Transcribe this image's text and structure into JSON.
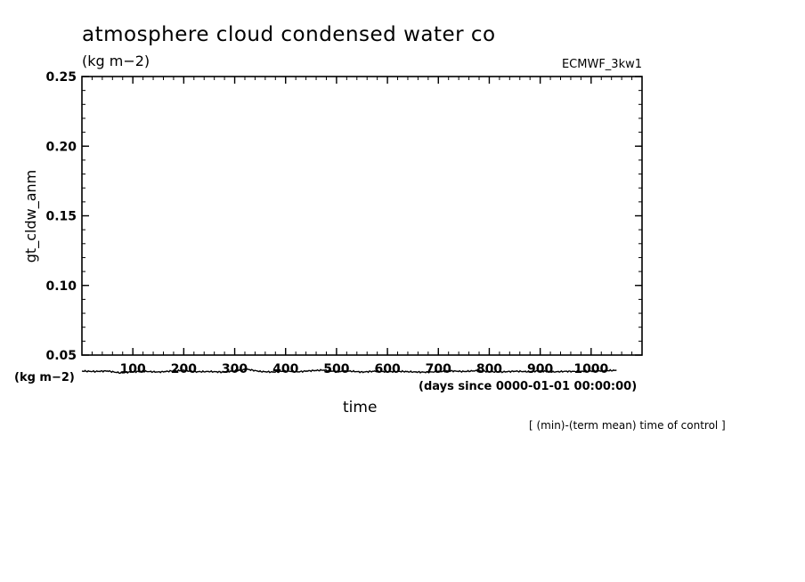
{
  "chart_data": {
    "type": "line",
    "title": "atmosphere cloud condensed water co",
    "subtitle": "(kg m−2)",
    "dataset": "ECMWF_3kw1",
    "ylabel": "gt_cldw_anm",
    "yunits": "(kg m−2)",
    "xlabel": "time",
    "xunits": "(days since 0000-01-01 00:00:00)",
    "note": "[ (min)-(term mean) time of control ]",
    "ylim": [
      0.05,
      0.25
    ],
    "xlim": [
      0,
      1100
    ],
    "yticks": [
      "0.05",
      "0.10",
      "0.15",
      "0.20",
      "0.25"
    ],
    "yticks_values": [
      0.05,
      0.1,
      0.15,
      0.2,
      0.25
    ],
    "xticks": [
      "100",
      "200",
      "300",
      "400",
      "500",
      "600",
      "700",
      "800",
      "900",
      "1000"
    ],
    "xticks_values": [
      100,
      200,
      300,
      400,
      500,
      600,
      700,
      800,
      900,
      1000
    ],
    "grid": false,
    "series": [
      {
        "color": "#000000",
        "x": [
          0,
          25,
          50,
          75,
          100,
          125,
          150,
          175,
          200,
          225,
          250,
          275,
          300,
          325,
          350,
          375,
          400,
          425,
          450,
          475,
          500,
          525,
          550,
          575,
          600,
          625,
          650,
          675,
          700,
          725,
          750,
          775,
          800,
          825,
          850,
          875,
          900,
          925,
          950,
          975,
          1000,
          1025,
          1050
        ],
        "y": [
          0.0385,
          0.0382,
          0.0386,
          0.0372,
          0.038,
          0.0383,
          0.0378,
          0.0385,
          0.039,
          0.038,
          0.0382,
          0.0378,
          0.0386,
          0.0398,
          0.0382,
          0.0378,
          0.0386,
          0.038,
          0.0388,
          0.0392,
          0.0381,
          0.0385,
          0.0378,
          0.0384,
          0.038,
          0.0383,
          0.0379,
          0.0377,
          0.0381,
          0.0386,
          0.0382,
          0.0388,
          0.0381,
          0.0379,
          0.0384,
          0.0381,
          0.0386,
          0.0379,
          0.0383,
          0.0382,
          0.0385,
          0.0388,
          0.039
        ]
      }
    ]
  }
}
